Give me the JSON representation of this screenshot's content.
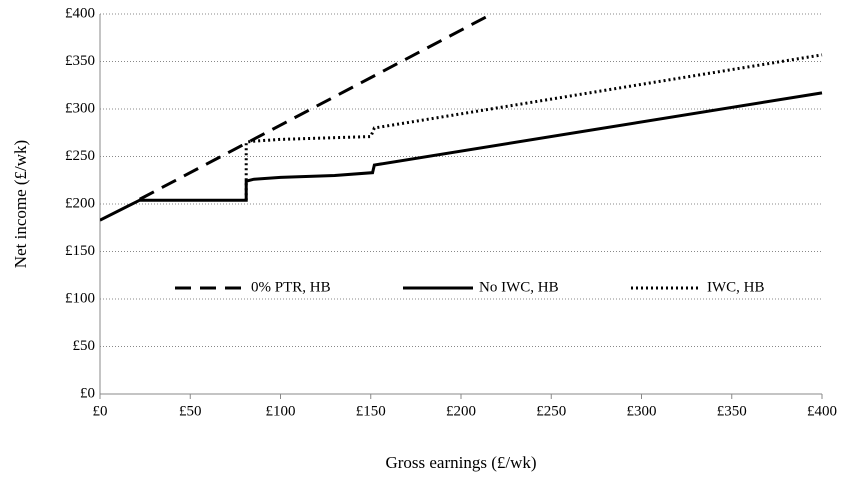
{
  "chart_data": {
    "type": "line",
    "x_label": "Gross earnings  (£/wk)",
    "y_label": "Net income (£/wk)",
    "xlim": [
      0,
      400
    ],
    "ylim": [
      0,
      400
    ],
    "xticks": [
      {
        "value": 0,
        "label": "£0"
      },
      {
        "value": 50,
        "label": "£50"
      },
      {
        "value": 100,
        "label": "£100"
      },
      {
        "value": 150,
        "label": "£150"
      },
      {
        "value": 200,
        "label": "£200"
      },
      {
        "value": 250,
        "label": "£250"
      },
      {
        "value": 300,
        "label": "£300"
      },
      {
        "value": 350,
        "label": "£350"
      },
      {
        "value": 400,
        "label": "£400"
      }
    ],
    "yticks": [
      {
        "value": 0,
        "label": "£0"
      },
      {
        "value": 50,
        "label": "£50"
      },
      {
        "value": 100,
        "label": "£100"
      },
      {
        "value": 150,
        "label": "£150"
      },
      {
        "value": 200,
        "label": "£200"
      },
      {
        "value": 250,
        "label": "£250"
      },
      {
        "value": 300,
        "label": "£300"
      },
      {
        "value": 350,
        "label": "£350"
      },
      {
        "value": 400,
        "label": "£400"
      }
    ],
    "grid": true,
    "legend": "center",
    "series": [
      {
        "name": "0% PTR, HB",
        "color": "#000000",
        "line_style": "dashed",
        "x": [
          22,
          217
        ],
        "values": [
          205,
          400
        ]
      },
      {
        "name": "No IWC, HB",
        "color": "#000000",
        "line_style": "solid",
        "x": [
          0,
          22,
          81,
          81,
          85,
          100,
          130,
          151,
          152,
          400
        ],
        "values": [
          183,
          204,
          204,
          224,
          226,
          228,
          230,
          233,
          241,
          317
        ]
      },
      {
        "name": "IWC, HB",
        "color": "#000000",
        "line_style": "dotted",
        "x": [
          81,
          81,
          84,
          100,
          150,
          152,
          400
        ],
        "values": [
          204,
          265,
          266,
          268,
          271,
          280,
          357
        ]
      }
    ]
  }
}
